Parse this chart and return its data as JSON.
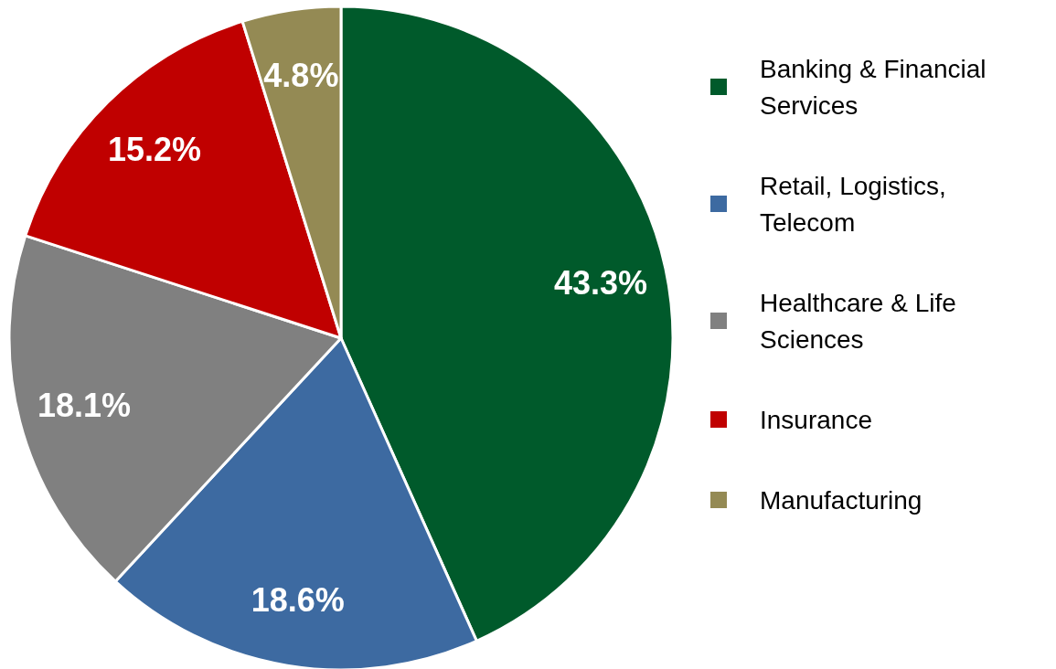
{
  "chart_data": {
    "type": "pie",
    "categories": [
      "Banking & Financial Services",
      "Retail, Logistics, Telecom",
      "Healthcare & Life Sciences",
      "Insurance",
      "Manufacturing"
    ],
    "values": [
      43.3,
      18.6,
      18.1,
      15.2,
      4.8
    ],
    "colors": [
      "#005a2b",
      "#3d6aa1",
      "#808080",
      "#c00000",
      "#948a54"
    ],
    "value_labels": [
      "43.3%",
      "18.6%",
      "18.1%",
      "15.2%",
      "4.8%"
    ],
    "legend": "right"
  }
}
